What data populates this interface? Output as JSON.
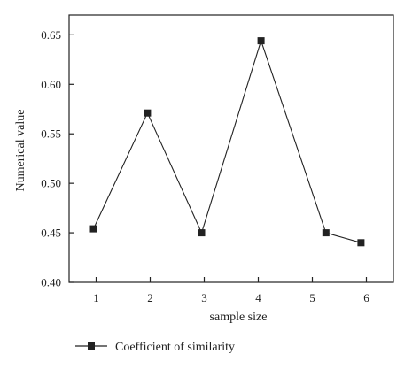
{
  "chart_data": {
    "type": "line",
    "xlabel": "sample size",
    "ylabel": "Numerical value",
    "xlim": [
      0.5,
      6.5
    ],
    "ylim": [
      0.4,
      0.67
    ],
    "x_ticks": [
      "1",
      "2",
      "3",
      "4",
      "5",
      "6"
    ],
    "y_ticks": [
      "0.40",
      "0.45",
      "0.50",
      "0.55",
      "0.60",
      "0.65"
    ],
    "series": [
      {
        "name": "Coefficient of similarity",
        "x": [
          0.95,
          1.95,
          2.95,
          4.05,
          5.25,
          5.9
        ],
        "y": [
          0.454,
          0.571,
          0.45,
          0.644,
          0.45,
          0.44
        ],
        "color": "#222222",
        "marker": "square"
      }
    ],
    "legend": "bottom-left"
  }
}
